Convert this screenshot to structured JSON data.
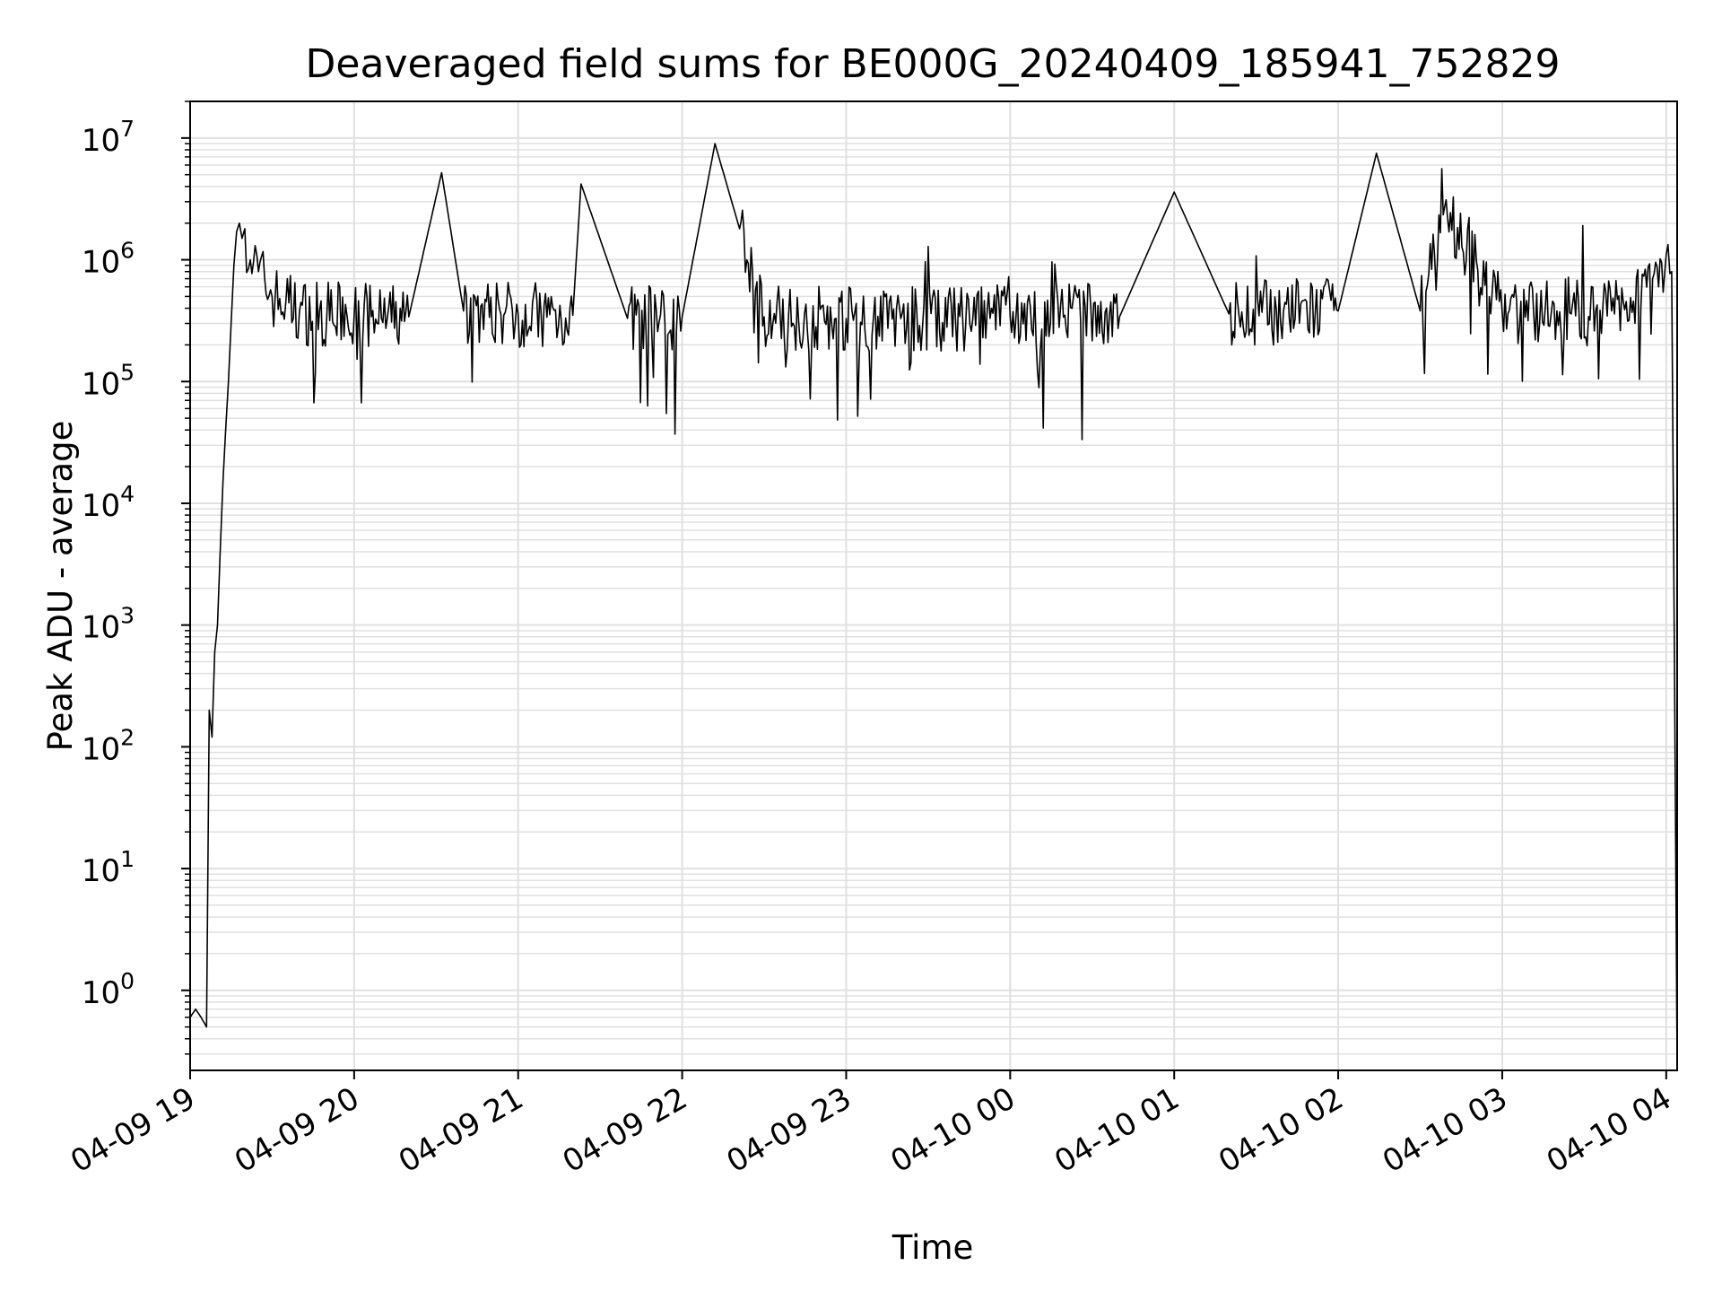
{
  "chart_data": {
    "type": "line",
    "title": "Deaveraged field sums for BE000G_20240409_185941_752829",
    "xlabel": "Time",
    "ylabel": "Peak ADU - average",
    "yscale": "log",
    "ylim": [
      0.22,
      20000000
    ],
    "xlim": [
      "04-09 19:00",
      "04-10 04:04"
    ],
    "grid": true,
    "line_color": "#000000",
    "grid_color": "#e0e0e0",
    "x_ticks": [
      "04-09 19",
      "04-09 20",
      "04-09 21",
      "04-09 22",
      "04-09 23",
      "04-10 00",
      "04-10 01",
      "04-10 02",
      "04-10 03",
      "04-10 04"
    ],
    "y_ticks": [
      {
        "base": "10",
        "exp": "0"
      },
      {
        "base": "10",
        "exp": "1"
      },
      {
        "base": "10",
        "exp": "2"
      },
      {
        "base": "10",
        "exp": "3"
      },
      {
        "base": "10",
        "exp": "4"
      },
      {
        "base": "10",
        "exp": "5"
      },
      {
        "base": "10",
        "exp": "6"
      },
      {
        "base": "10",
        "exp": "7"
      }
    ],
    "series": [
      {
        "x": [
          "04-09 19:00",
          "04-09 19:02",
          "04-09 19:04",
          "04-09 19:06",
          "04-09 19:07",
          "04-09 19:08",
          "04-09 19:09",
          "04-09 19:10",
          "04-09 19:11",
          "04-09 19:12",
          "04-09 19:13",
          "04-09 19:14",
          "04-09 19:15",
          "04-09 19:16",
          "04-09 19:17",
          "04-09 19:18",
          "04-09 19:19",
          "04-09 19:20",
          "04-09 19:22",
          "04-09 19:25",
          "04-09 19:30",
          "04-09 19:35",
          "04-09 19:40",
          "04-09 19:50",
          "04-09 20:00",
          "04-09 20:10",
          "04-09 20:20",
          "04-09 20:32",
          "04-09 20:40",
          "04-09 21:00",
          "04-09 21:20",
          "04-09 21:23",
          "04-09 21:40",
          "04-09 22:00",
          "04-09 22:12",
          "04-09 22:21",
          "04-09 22:30",
          "04-09 23:00",
          "04-09 23:40",
          "04-10 00:00",
          "04-10 00:20",
          "04-10 00:40",
          "04-10 01:00",
          "04-10 01:20",
          "04-10 01:40",
          "04-10 02:00",
          "04-10 02:14",
          "04-10 02:30",
          "04-10 02:40",
          "04-10 03:00",
          "04-10 03:20",
          "04-10 03:40",
          "04-10 03:55",
          "04-10 04:00",
          "04-10 04:02",
          "04-10 04:03",
          "04-10 04:04"
        ],
        "y": [
          0.6,
          0.7,
          0.6,
          0.5,
          200,
          120,
          600,
          1000,
          4000,
          15000,
          40000,
          100000,
          300000,
          900000,
          1700000,
          2000000,
          1500000,
          1800000,
          1000000,
          800000,
          500000,
          450000,
          380000,
          350000,
          350000,
          330000,
          340000,
          5200000,
          380000,
          360000,
          350000,
          4200000,
          330000,
          340000,
          9000000,
          1800000,
          340000,
          330000,
          320000,
          340000,
          350000,
          340000,
          3600000,
          360000,
          380000,
          380000,
          7500000,
          380000,
          2200000,
          370000,
          380000,
          380000,
          700000,
          1100000,
          800000,
          500,
          0.22
        ]
      }
    ]
  }
}
